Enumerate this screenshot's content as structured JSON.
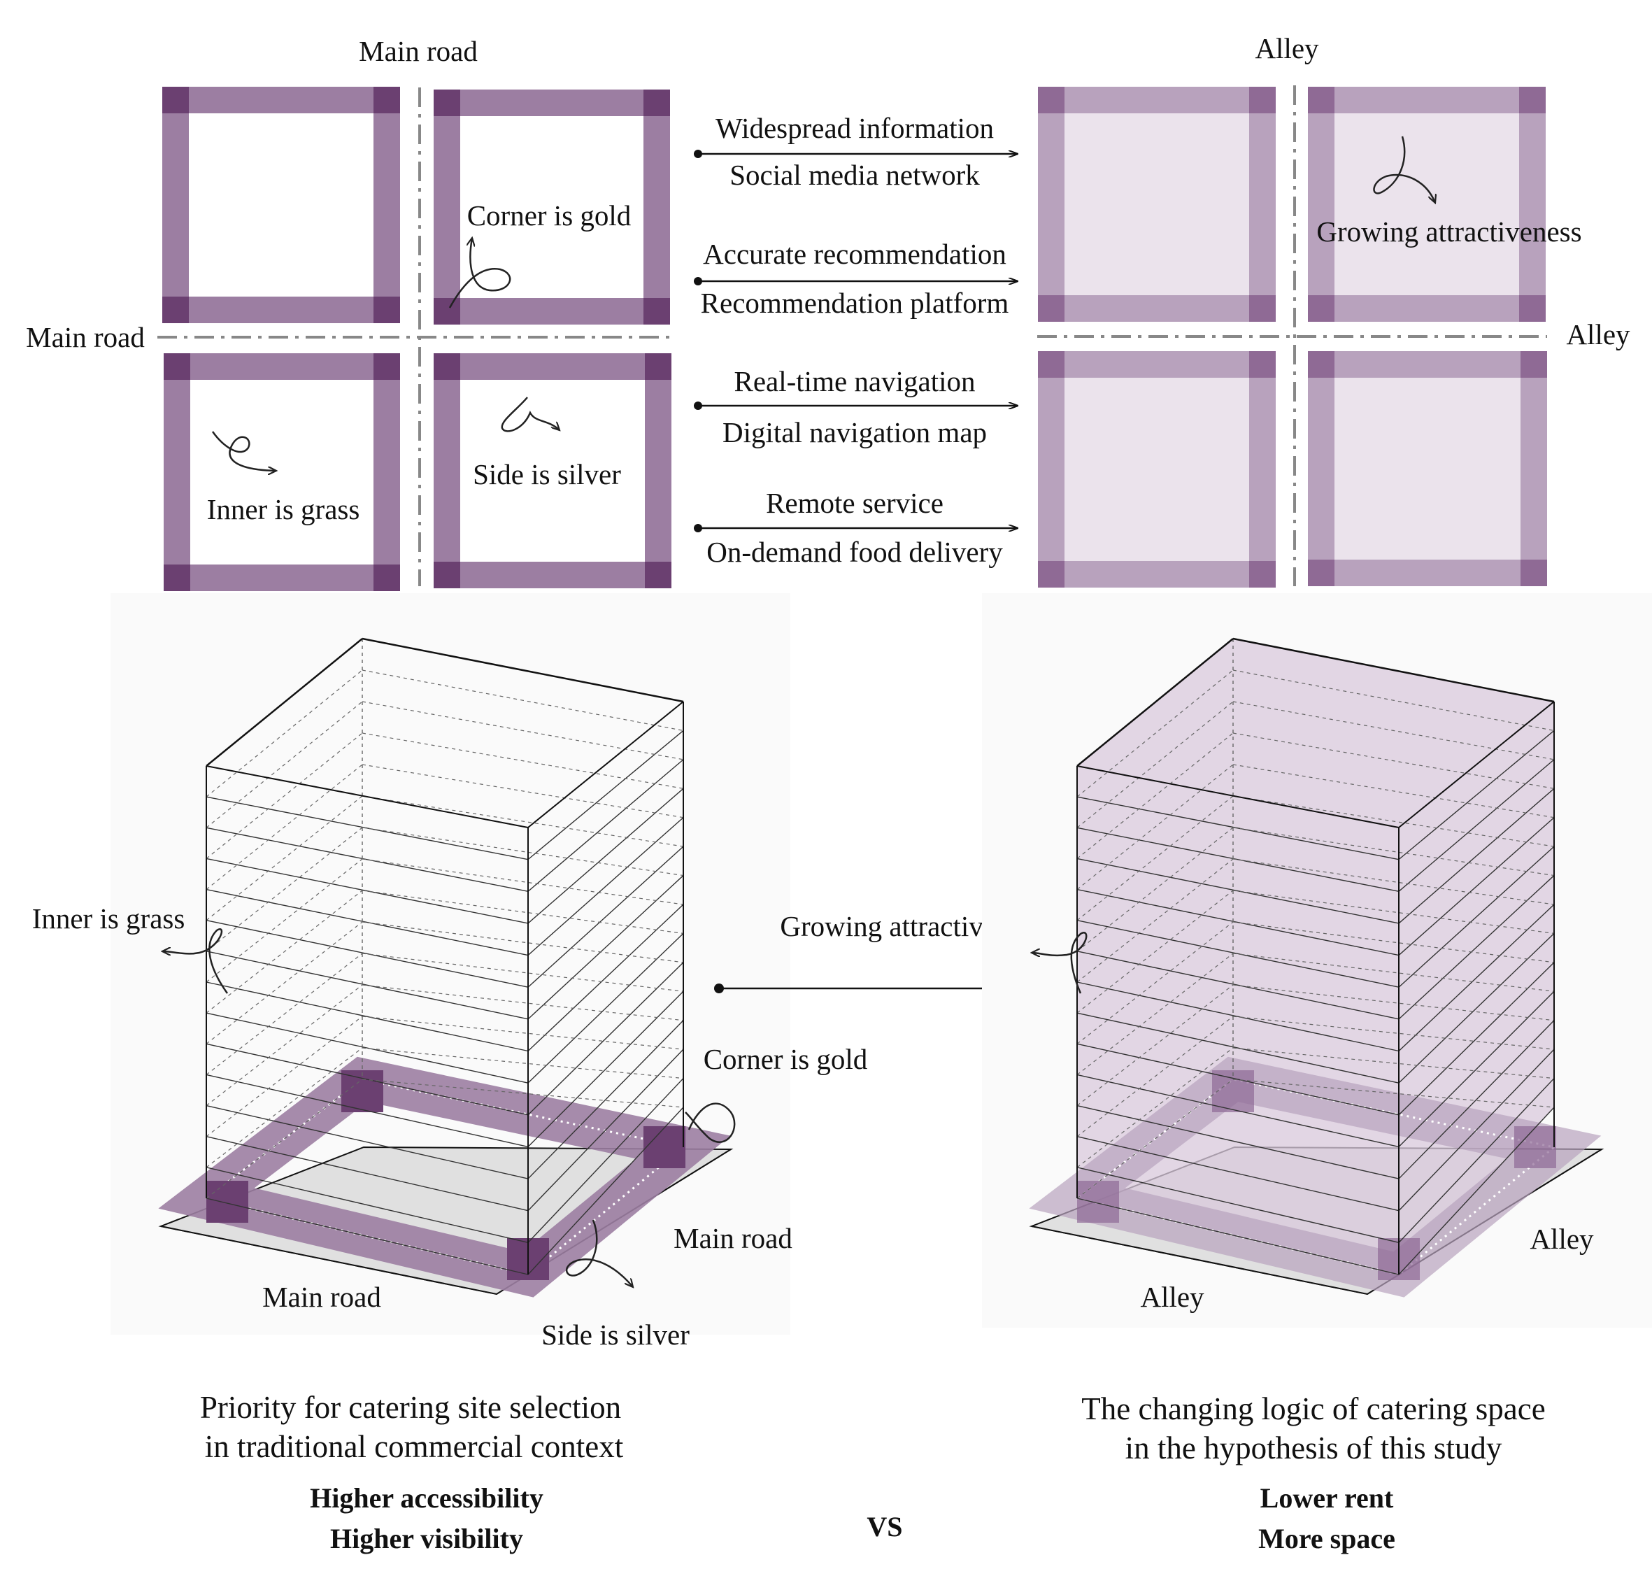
{
  "colors": {
    "strip": "#9c7ea2",
    "strip_light": "#b8a2bd",
    "corner": "#6b4071",
    "corner_light": "#8f6a95",
    "fill_light": "#ebe3ec",
    "road_line": "#888888",
    "building_fill": "#d9c9dc",
    "panel_bg": "#fafafa"
  },
  "top_left": {
    "road_top": "Main road",
    "road_left": "Main road",
    "corner_label": "Corner is gold",
    "inner_label": "Inner is grass",
    "side_label": "Side is silver"
  },
  "top_right": {
    "road_top": "Alley",
    "road_right": "Alley",
    "attract_label": "Growing attractiveness"
  },
  "arrows": [
    {
      "top": "Widespread information",
      "bottom": "Social media network"
    },
    {
      "top": "Accurate recommendation",
      "bottom": "Recommendation platform"
    },
    {
      "top": "Real-time navigation",
      "bottom": "Digital navigation map"
    },
    {
      "top": "Remote service",
      "bottom": "On-demand food delivery"
    }
  ],
  "bottom_left": {
    "inner_label": "Inner is grass",
    "corner_label": "Corner is gold",
    "road_right": "Main road",
    "road_left": "Main road",
    "side_label": "Side is silver",
    "caption_1": "Priority for catering site selection",
    "caption_2": "in traditional commercial context",
    "bold_1": "Higher accessibility",
    "bold_2": "Higher visibility"
  },
  "bottom_middle": {
    "arrow_label": "Growing attractiveness",
    "vs": "VS"
  },
  "bottom_right": {
    "road_right": "Alley",
    "road_left": "Alley",
    "caption_1": "The changing logic of catering space",
    "caption_2": "in the hypothesis of this study",
    "bold_1": "Lower rent",
    "bold_2": "More space"
  }
}
